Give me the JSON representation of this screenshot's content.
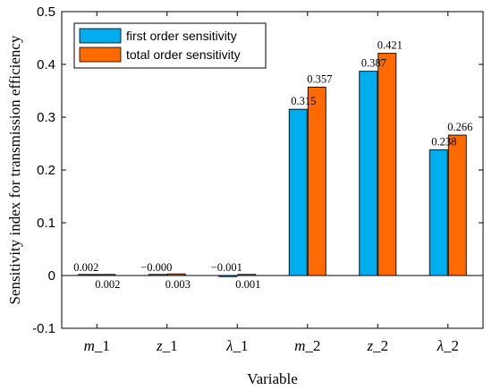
{
  "chart_data": {
    "type": "bar",
    "xlabel": "Variable",
    "ylabel": "Sensitivity index for transmission efficiency",
    "ylim": [
      -0.1,
      0.5
    ],
    "yticks": [
      -0.1,
      0,
      0.1,
      0.2,
      0.3,
      0.4,
      0.5
    ],
    "ytick_labels": [
      "-0.1",
      "0",
      "0.1",
      "0.2",
      "0.3",
      "0.4",
      "0.5"
    ],
    "categories": [
      "m_1",
      "z_1",
      "λ_1",
      "m_2",
      "z_2",
      "λ_2"
    ],
    "category_symbols": [
      "m",
      "z",
      "λ",
      "m",
      "z",
      "λ"
    ],
    "category_subscripts": [
      "_1",
      "_1",
      "_1",
      "_2",
      "_2",
      "_2"
    ],
    "legend_position": "top-left",
    "grid": false,
    "series": [
      {
        "name": "first order sensitivity",
        "color": "#00AEEF",
        "values": [
          0.002,
          -0.0,
          -0.001,
          0.315,
          0.387,
          0.238
        ],
        "labels": [
          "0.002",
          "−0.000",
          "−0.001",
          "0.315",
          "0.387",
          "0.238"
        ]
      },
      {
        "name": "total order sensitivity",
        "color": "#FF6A00",
        "values": [
          0.002,
          0.003,
          0.001,
          0.357,
          0.421,
          0.266
        ],
        "labels": [
          "0.002",
          "0.003",
          "0.001",
          "0.357",
          "0.421",
          "0.266"
        ]
      }
    ]
  }
}
